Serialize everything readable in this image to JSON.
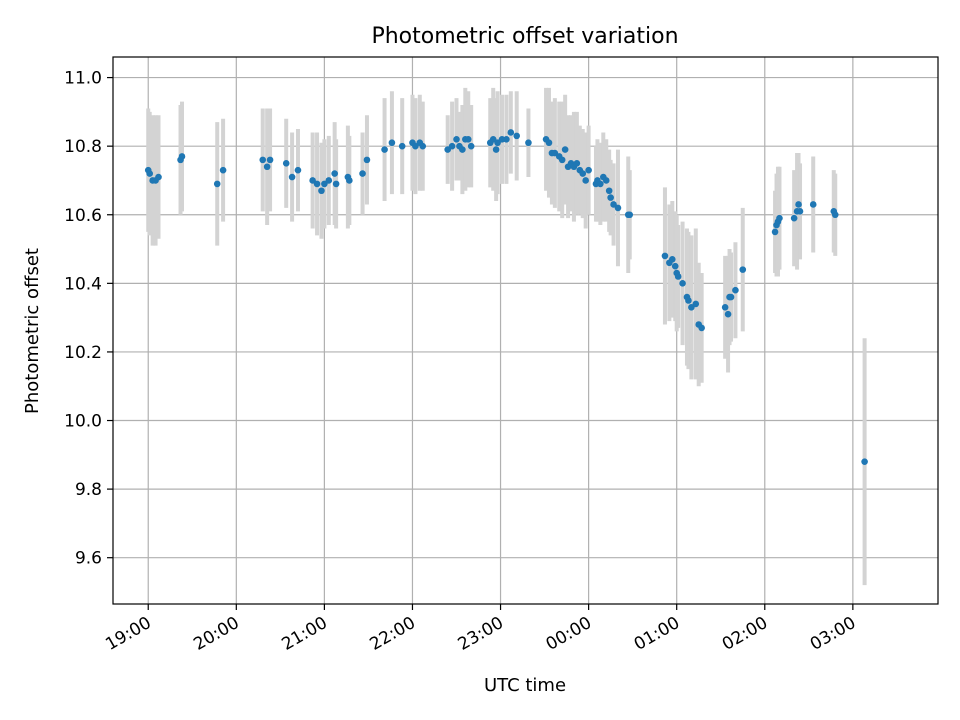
{
  "chart_data": {
    "type": "scatter",
    "title": "Photometric offset variation",
    "xlabel": "UTC time",
    "ylabel": "Photometric offset",
    "x_unit": "UTC time",
    "xlim": [
      "18:36",
      "03:58"
    ],
    "ylim": [
      9.465,
      11.06
    ],
    "yticks": [
      9.6,
      9.8,
      10.0,
      10.2,
      10.4,
      10.6,
      10.8,
      11.0
    ],
    "ytick_labels": [
      "9.6",
      "9.8",
      "10.0",
      "10.2",
      "10.4",
      "10.6",
      "10.8",
      "11.0"
    ],
    "xticks": [
      "19:00",
      "20:00",
      "21:00",
      "22:00",
      "23:00",
      "00:00",
      "01:00",
      "02:00",
      "03:00"
    ],
    "xtick_labels": [
      "19:00",
      "20:00",
      "21:00",
      "22:00",
      "23:00",
      "00:00",
      "01:00",
      "02:00",
      "03:00"
    ],
    "grid": true,
    "legend": "none",
    "colors": {
      "points": "#1f77b4",
      "errorbars": "#d3d3d3",
      "grid": "#b0b0b0",
      "axes": "#000000"
    },
    "points": [
      {
        "x": "19:00",
        "y": 10.73,
        "err": 0.18
      },
      {
        "x": "19:01",
        "y": 10.72,
        "err": 0.18
      },
      {
        "x": "19:03",
        "y": 10.7,
        "err": 0.19
      },
      {
        "x": "19:05",
        "y": 10.7,
        "err": 0.19
      },
      {
        "x": "19:07",
        "y": 10.71,
        "err": 0.18
      },
      {
        "x": "19:22",
        "y": 10.76,
        "err": 0.16
      },
      {
        "x": "19:23",
        "y": 10.77,
        "err": 0.16
      },
      {
        "x": "19:47",
        "y": 10.69,
        "err": 0.18
      },
      {
        "x": "19:51",
        "y": 10.73,
        "err": 0.15
      },
      {
        "x": "20:18",
        "y": 10.76,
        "err": 0.15
      },
      {
        "x": "20:21",
        "y": 10.74,
        "err": 0.17
      },
      {
        "x": "20:23",
        "y": 10.76,
        "err": 0.15
      },
      {
        "x": "20:34",
        "y": 10.75,
        "err": 0.13
      },
      {
        "x": "20:38",
        "y": 10.71,
        "err": 0.13
      },
      {
        "x": "20:42",
        "y": 10.73,
        "err": 0.12
      },
      {
        "x": "20:52",
        "y": 10.7,
        "err": 0.14
      },
      {
        "x": "20:55",
        "y": 10.69,
        "err": 0.15
      },
      {
        "x": "20:58",
        "y": 10.67,
        "err": 0.14
      },
      {
        "x": "21:00",
        "y": 10.69,
        "err": 0.13
      },
      {
        "x": "21:03",
        "y": 10.7,
        "err": 0.13
      },
      {
        "x": "21:07",
        "y": 10.72,
        "err": 0.15
      },
      {
        "x": "21:08",
        "y": 10.69,
        "err": 0.13
      },
      {
        "x": "21:16",
        "y": 10.71,
        "err": 0.15
      },
      {
        "x": "21:17",
        "y": 10.7,
        "err": 0.13
      },
      {
        "x": "21:26",
        "y": 10.72,
        "err": 0.12
      },
      {
        "x": "21:29",
        "y": 10.76,
        "err": 0.13
      },
      {
        "x": "21:41",
        "y": 10.79,
        "err": 0.15
      },
      {
        "x": "21:46",
        "y": 10.81,
        "err": 0.15
      },
      {
        "x": "21:53",
        "y": 10.8,
        "err": 0.14
      },
      {
        "x": "22:00",
        "y": 10.81,
        "err": 0.14
      },
      {
        "x": "22:02",
        "y": 10.8,
        "err": 0.14
      },
      {
        "x": "22:05",
        "y": 10.81,
        "err": 0.14
      },
      {
        "x": "22:07",
        "y": 10.8,
        "err": 0.13
      },
      {
        "x": "22:24",
        "y": 10.79,
        "err": 0.1
      },
      {
        "x": "22:27",
        "y": 10.8,
        "err": 0.13
      },
      {
        "x": "22:30",
        "y": 10.82,
        "err": 0.12
      },
      {
        "x": "22:32",
        "y": 10.8,
        "err": 0.1
      },
      {
        "x": "22:34",
        "y": 10.79,
        "err": 0.13
      },
      {
        "x": "22:36",
        "y": 10.82,
        "err": 0.15
      },
      {
        "x": "22:38",
        "y": 10.82,
        "err": 0.14
      },
      {
        "x": "22:40",
        "y": 10.8,
        "err": 0.12
      },
      {
        "x": "22:53",
        "y": 10.81,
        "err": 0.13
      },
      {
        "x": "22:55",
        "y": 10.82,
        "err": 0.15
      },
      {
        "x": "22:57",
        "y": 10.79,
        "err": 0.15
      },
      {
        "x": "22:58",
        "y": 10.81,
        "err": 0.15
      },
      {
        "x": "23:01",
        "y": 10.82,
        "err": 0.13
      },
      {
        "x": "23:04",
        "y": 10.82,
        "err": 0.13
      },
      {
        "x": "23:07",
        "y": 10.84,
        "err": 0.12
      },
      {
        "x": "23:11",
        "y": 10.83,
        "err": 0.13
      },
      {
        "x": "23:19",
        "y": 10.81,
        "err": 0.1
      },
      {
        "x": "23:31",
        "y": 10.82,
        "err": 0.15
      },
      {
        "x": "23:33",
        "y": 10.81,
        "err": 0.16
      },
      {
        "x": "23:35",
        "y": 10.78,
        "err": 0.15
      },
      {
        "x": "23:37",
        "y": 10.78,
        "err": 0.16
      },
      {
        "x": "23:40",
        "y": 10.77,
        "err": 0.16
      },
      {
        "x": "23:42",
        "y": 10.76,
        "err": 0.17
      },
      {
        "x": "23:44",
        "y": 10.79,
        "err": 0.16
      },
      {
        "x": "23:46",
        "y": 10.74,
        "err": 0.15
      },
      {
        "x": "23:48",
        "y": 10.75,
        "err": 0.14
      },
      {
        "x": "23:50",
        "y": 10.74,
        "err": 0.16
      },
      {
        "x": "23:52",
        "y": 10.75,
        "err": 0.15
      },
      {
        "x": "23:54",
        "y": 10.73,
        "err": 0.13
      },
      {
        "x": "23:56",
        "y": 10.72,
        "err": 0.13
      },
      {
        "x": "23:58",
        "y": 10.7,
        "err": 0.14
      },
      {
        "x": "00:00",
        "y": 10.73,
        "err": 0.13
      },
      {
        "x": "00:05",
        "y": 10.69,
        "err": 0.11
      },
      {
        "x": "00:06",
        "y": 10.7,
        "err": 0.12
      },
      {
        "x": "00:08",
        "y": 10.69,
        "err": 0.12
      },
      {
        "x": "00:10",
        "y": 10.71,
        "err": 0.13
      },
      {
        "x": "00:12",
        "y": 10.7,
        "err": 0.12
      },
      {
        "x": "00:14",
        "y": 10.67,
        "err": 0.12
      },
      {
        "x": "00:15",
        "y": 10.65,
        "err": 0.11
      },
      {
        "x": "00:17",
        "y": 10.63,
        "err": 0.12
      },
      {
        "x": "00:20",
        "y": 10.62,
        "err": 0.17
      },
      {
        "x": "00:27",
        "y": 10.6,
        "err": 0.17
      },
      {
        "x": "00:28",
        "y": 10.6,
        "err": 0.13
      },
      {
        "x": "00:52",
        "y": 10.48,
        "err": 0.2
      },
      {
        "x": "00:55",
        "y": 10.46,
        "err": 0.17
      },
      {
        "x": "00:57",
        "y": 10.47,
        "err": 0.17
      },
      {
        "x": "00:59",
        "y": 10.45,
        "err": 0.16
      },
      {
        "x": "01:00",
        "y": 10.43,
        "err": 0.17
      },
      {
        "x": "01:01",
        "y": 10.42,
        "err": 0.15
      },
      {
        "x": "01:04",
        "y": 10.4,
        "err": 0.18
      },
      {
        "x": "01:07",
        "y": 10.36,
        "err": 0.2
      },
      {
        "x": "01:08",
        "y": 10.35,
        "err": 0.2
      },
      {
        "x": "01:10",
        "y": 10.33,
        "err": 0.21
      },
      {
        "x": "01:13",
        "y": 10.34,
        "err": 0.22
      },
      {
        "x": "01:15",
        "y": 10.28,
        "err": 0.18
      },
      {
        "x": "01:17",
        "y": 10.27,
        "err": 0.16
      },
      {
        "x": "01:33",
        "y": 10.33,
        "err": 0.15
      },
      {
        "x": "01:35",
        "y": 10.31,
        "err": 0.17
      },
      {
        "x": "01:36",
        "y": 10.36,
        "err": 0.14
      },
      {
        "x": "01:37",
        "y": 10.36,
        "err": 0.13
      },
      {
        "x": "01:40",
        "y": 10.38,
        "err": 0.14
      },
      {
        "x": "01:45",
        "y": 10.44,
        "err": 0.18
      },
      {
        "x": "02:07",
        "y": 10.55,
        "err": 0.12
      },
      {
        "x": "02:08",
        "y": 10.57,
        "err": 0.15
      },
      {
        "x": "02:09",
        "y": 10.58,
        "err": 0.16
      },
      {
        "x": "02:10",
        "y": 10.59,
        "err": 0.15
      },
      {
        "x": "02:20",
        "y": 10.59,
        "err": 0.14
      },
      {
        "x": "02:22",
        "y": 10.61,
        "err": 0.17
      },
      {
        "x": "02:23",
        "y": 10.63,
        "err": 0.15
      },
      {
        "x": "02:24",
        "y": 10.61,
        "err": 0.14
      },
      {
        "x": "02:33",
        "y": 10.63,
        "err": 0.14
      },
      {
        "x": "02:47",
        "y": 10.61,
        "err": 0.12
      },
      {
        "x": "02:48",
        "y": 10.6,
        "err": 0.12
      },
      {
        "x": "03:08",
        "y": 9.88,
        "err": 0.36
      }
    ]
  }
}
